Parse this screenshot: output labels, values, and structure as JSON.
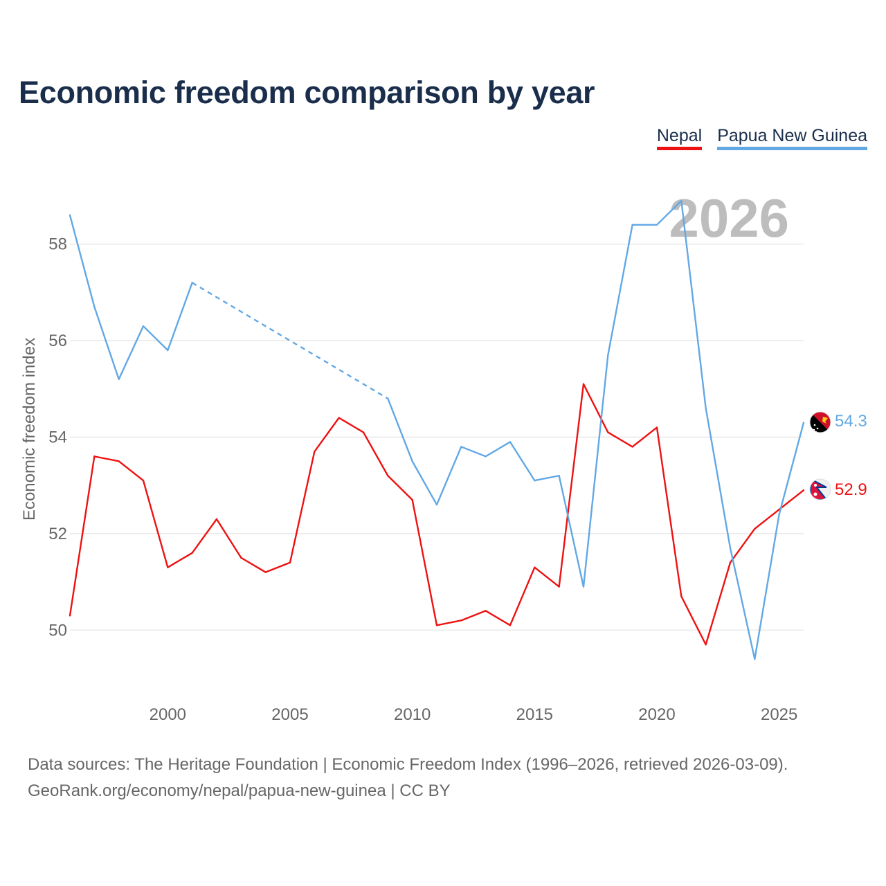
{
  "title": "Economic freedom comparison by year",
  "legend": {
    "nepal": "Nepal",
    "png": "Papua New Guinea"
  },
  "current_year": "2026",
  "flags": {
    "nepal": "nepal-flag-icon",
    "png": "papua-new-guinea-flag-icon"
  },
  "source": {
    "line1": "Data sources: The Heritage Foundation | Economic Freedom Index (1996–2026, retrieved 2026-03-09).",
    "line2": "GeoRank.org/economy/nepal/papua-new-guinea | CC BY"
  },
  "chart_data": {
    "type": "line",
    "title": "Economic freedom comparison by year",
    "xlabel": "",
    "ylabel": "Economic freedom index",
    "xlim": [
      1996,
      2026
    ],
    "ylim": [
      49,
      59
    ],
    "x_ticks": [
      "2000",
      "2005",
      "2010",
      "2015",
      "2020",
      "2025"
    ],
    "y_ticks": [
      "50",
      "52",
      "54",
      "56",
      "58"
    ],
    "grid": true,
    "legend_position": "top-right",
    "series": [
      {
        "name": "Nepal",
        "color": "#ee1111",
        "end_label": "52.9",
        "points": [
          [
            1996,
            50.3
          ],
          [
            1997,
            53.6
          ],
          [
            1998,
            53.5
          ],
          [
            1999,
            53.1
          ],
          [
            2000,
            51.3
          ],
          [
            2001,
            51.6
          ],
          [
            2002,
            52.3
          ],
          [
            2003,
            51.5
          ],
          [
            2004,
            51.2
          ],
          [
            2005,
            51.4
          ],
          [
            2006,
            53.7
          ],
          [
            2007,
            54.4
          ],
          [
            2008,
            54.1
          ],
          [
            2009,
            53.2
          ],
          [
            2010,
            52.7
          ],
          [
            2011,
            50.1
          ],
          [
            2012,
            50.2
          ],
          [
            2013,
            50.4
          ],
          [
            2014,
            50.1
          ],
          [
            2015,
            51.3
          ],
          [
            2016,
            50.9
          ],
          [
            2017,
            55.1
          ],
          [
            2018,
            54.1
          ],
          [
            2019,
            53.8
          ],
          [
            2020,
            54.2
          ],
          [
            2021,
            50.7
          ],
          [
            2022,
            49.7
          ],
          [
            2023,
            51.4
          ],
          [
            2024,
            52.1
          ],
          [
            2025,
            52.5
          ],
          [
            2026,
            52.9
          ]
        ],
        "gaps": []
      },
      {
        "name": "Papua New Guinea",
        "color": "#62a8e5",
        "end_label": "54.3",
        "points": [
          [
            1996,
            58.6
          ],
          [
            1997,
            56.7
          ],
          [
            1998,
            55.2
          ],
          [
            1999,
            56.3
          ],
          [
            2000,
            55.8
          ],
          [
            2001,
            57.2
          ],
          [
            2009,
            54.8
          ],
          [
            2010,
            53.5
          ],
          [
            2011,
            52.6
          ],
          [
            2012,
            53.8
          ],
          [
            2013,
            53.6
          ],
          [
            2014,
            53.9
          ],
          [
            2015,
            53.1
          ],
          [
            2016,
            53.2
          ],
          [
            2017,
            50.9
          ],
          [
            2018,
            55.7
          ],
          [
            2019,
            58.4
          ],
          [
            2020,
            58.4
          ],
          [
            2021,
            58.9
          ],
          [
            2022,
            54.6
          ],
          [
            2023,
            51.7
          ],
          [
            2024,
            49.4
          ],
          [
            2025,
            52.4
          ],
          [
            2026,
            54.3
          ]
        ],
        "gaps": [
          [
            2001,
            2009
          ]
        ]
      }
    ]
  }
}
